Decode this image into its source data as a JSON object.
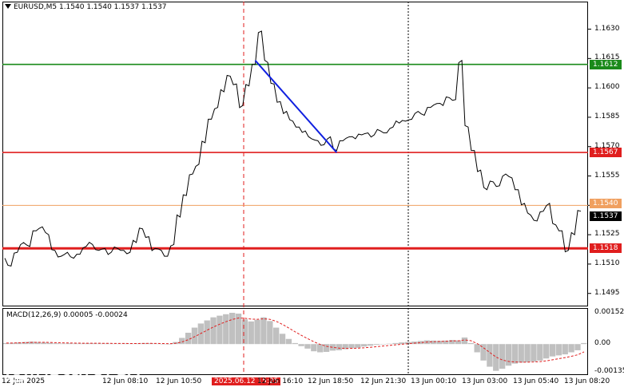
{
  "header": {
    "symbol_line": "EURUSD,M5  1.1540 1.1540 1.1537 1.1537"
  },
  "macd": {
    "title": "MACD(12,26,9) 0.00005 -0.00024"
  },
  "price_axis": {
    "ticks": [
      "1.1630",
      "1.1615",
      "1.1600",
      "1.1585",
      "1.1570",
      "1.1555",
      "1.1540",
      "1.1525",
      "1.1510",
      "1.1495"
    ]
  },
  "macd_axis": {
    "ticks": [
      "0.00152",
      "0.00",
      "-0.00135"
    ]
  },
  "levels": {
    "upper": {
      "label": "1.1612",
      "color": "#1a8a1a"
    },
    "mid": {
      "label": "1.1567",
      "color": "#e01e1e"
    },
    "low": {
      "label": "1.1518",
      "color": "#e01e1e"
    },
    "bid": {
      "label": "1.1540",
      "color": "#f0a060"
    },
    "current": {
      "label": "1.1537",
      "color": "#000000"
    }
  },
  "time_axis": {
    "labels": [
      "12 Jun 2025",
      "12 Jun 08:10",
      "12 Jun 10:50",
      "2025.06.12 15:25",
      "12 Jun 16:10",
      "12 Jun 18:50",
      "12 Jun 21:30",
      "13 Jun 00:10",
      "13 Jun 03:00",
      "13 Jun 05:40",
      "13 Jun 08:20"
    ]
  },
  "watermark": {
    "brand": "instaforex",
    "tagline": "Instant Forex Trading"
  },
  "colors": {
    "trendline": "#1020e0",
    "vline": "#e01e1e",
    "macd_hist": "#c0c0c0",
    "macd_signal": "#e01e1e"
  },
  "chart_data": {
    "type": "line",
    "title": "EURUSD,M5",
    "price_series": [
      1.1513,
      1.1509,
      1.1516,
      1.1521,
      1.1519,
      1.1527,
      1.1529,
      1.1525,
      1.1517,
      1.1514,
      1.1516,
      1.1513,
      1.1515,
      1.1519,
      1.152,
      1.1517,
      1.1518,
      1.1516,
      1.1518,
      1.1517,
      1.1516,
      1.1521,
      1.1528,
      1.1524,
      1.1518,
      1.1517,
      1.1514,
      1.152,
      1.1534,
      1.1545,
      1.1556,
      1.1561,
      1.1572,
      1.1584,
      1.159,
      1.1598,
      1.1606,
      1.1602,
      1.1591,
      1.1601,
      1.1612,
      1.1629,
      1.1613,
      1.1602,
      1.1593,
      1.1588,
      1.1583,
      1.158,
      1.1578,
      1.1574,
      1.1573,
      1.1571,
      1.1575,
      1.1568,
      1.1573,
      1.1575,
      1.1574,
      1.1576,
      1.1577,
      1.1576,
      1.1578,
      1.1577,
      1.158,
      1.1582,
      1.1583,
      1.1584,
      1.1588,
      1.1586,
      1.159,
      1.1592,
      1.1591,
      1.1595,
      1.1594,
      1.1614,
      1.158,
      1.1568,
      1.1558,
      1.1548,
      1.1552,
      1.155,
      1.1556,
      1.1554,
      1.1548,
      1.1541,
      1.1535,
      1.1532,
      1.1537,
      1.1541,
      1.153,
      1.1527,
      1.1517,
      1.1525,
      1.1537
    ],
    "levels": [
      1.1612,
      1.1567,
      1.1518,
      1.154
    ],
    "trendline": {
      "from": 1.1614,
      "to": 1.1567
    },
    "macd_series": [
      5e-05,
      6e-05,
      8e-05,
      0.0001,
      0.00012,
      0.0001,
      8e-05,
      6e-05,
      4e-05,
      3e-05,
      4e-05,
      3e-05,
      3e-05,
      4e-05,
      4e-05,
      3e-05,
      3e-05,
      2e-05,
      2e-05,
      3e-05,
      2e-05,
      3e-05,
      5e-05,
      4e-05,
      2e-05,
      1e-05,
      0.0,
      0.0001,
      0.0003,
      0.00055,
      0.0008,
      0.001,
      0.00115,
      0.0013,
      0.00138,
      0.00145,
      0.00152,
      0.00148,
      0.0012,
      0.0011,
      0.00118,
      0.0013,
      0.00112,
      0.0008,
      0.0005,
      0.00025,
      5e-05,
      -0.0001,
      -0.00022,
      -0.00035,
      -0.0004,
      -0.00038,
      -0.00032,
      -0.0003,
      -0.00025,
      -0.0002,
      -0.00018,
      -0.00012,
      -8e-05,
      -4e-05,
      0.0,
      2e-05,
      5e-05,
      8e-05,
      0.0001,
      0.00012,
      0.00015,
      0.00018,
      0.00017,
      0.00016,
      0.00017,
      0.0002,
      0.00018,
      0.00032,
      5e-05,
      -0.0004,
      -0.0008,
      -0.0011,
      -0.0013,
      -0.0012,
      -0.00105,
      -0.00095,
      -0.0009,
      -0.00088,
      -0.00085,
      -0.0008,
      -0.0007,
      -0.0006,
      -0.00055,
      -0.0005,
      -0.0004,
      -0.0003,
      5e-05
    ],
    "ylim": [
      1.149,
      1.164
    ],
    "macd_ylim": [
      -0.00135,
      0.00152
    ]
  }
}
